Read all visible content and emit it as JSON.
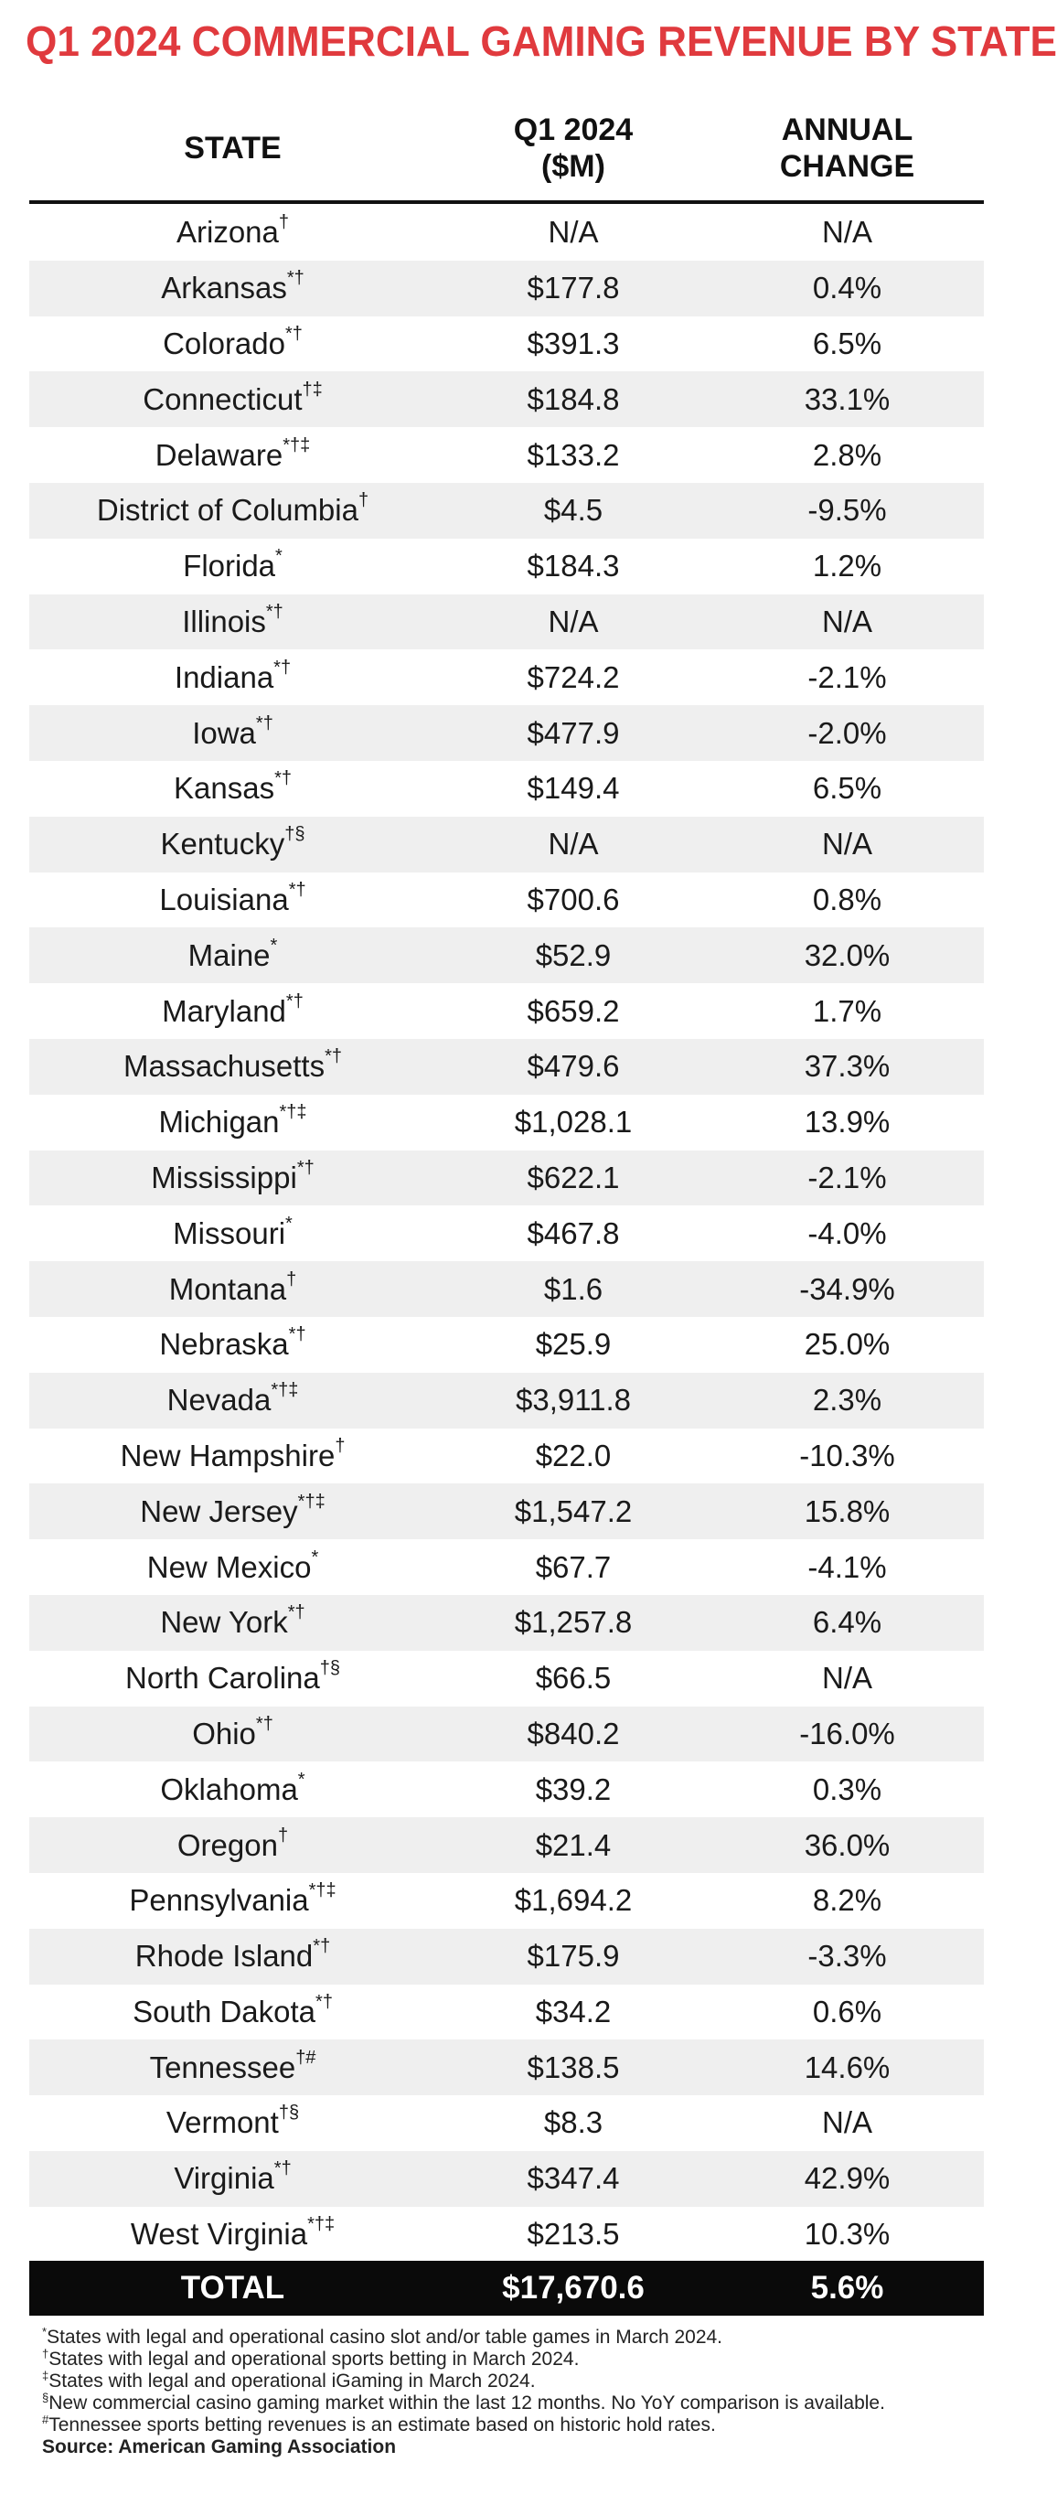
{
  "title": "Q1 2024 COMMERCIAL GAMING REVENUE BY STATE",
  "columns": {
    "state": "STATE",
    "revenue_line1": "Q1 2024",
    "revenue_line2": "($M)",
    "change": "ANNUAL CHANGE"
  },
  "rows": [
    {
      "state": "Arizona",
      "marks": "†",
      "revenue": "N/A",
      "change": "N/A"
    },
    {
      "state": "Arkansas",
      "marks": "*†",
      "revenue": "$177.8",
      "change": "0.4%"
    },
    {
      "state": "Colorado",
      "marks": "*†",
      "revenue": "$391.3",
      "change": "6.5%"
    },
    {
      "state": "Connecticut",
      "marks": "†‡",
      "revenue": "$184.8",
      "change": "33.1%"
    },
    {
      "state": "Delaware",
      "marks": "*†‡",
      "revenue": "$133.2",
      "change": "2.8%"
    },
    {
      "state": "District of Columbia",
      "marks": "†",
      "revenue": "$4.5",
      "change": "-9.5%"
    },
    {
      "state": "Florida",
      "marks": "*",
      "revenue": "$184.3",
      "change": "1.2%"
    },
    {
      "state": "Illinois",
      "marks": "*†",
      "revenue": "N/A",
      "change": "N/A"
    },
    {
      "state": "Indiana",
      "marks": "*†",
      "revenue": "$724.2",
      "change": "-2.1%"
    },
    {
      "state": "Iowa",
      "marks": "*†",
      "revenue": "$477.9",
      "change": "-2.0%"
    },
    {
      "state": "Kansas",
      "marks": "*†",
      "revenue": "$149.4",
      "change": "6.5%"
    },
    {
      "state": "Kentucky",
      "marks": "†§",
      "revenue": "N/A",
      "change": "N/A"
    },
    {
      "state": "Louisiana",
      "marks": "*†",
      "revenue": "$700.6",
      "change": "0.8%"
    },
    {
      "state": "Maine",
      "marks": "*",
      "revenue": "$52.9",
      "change": "32.0%"
    },
    {
      "state": "Maryland",
      "marks": "*†",
      "revenue": "$659.2",
      "change": "1.7%"
    },
    {
      "state": "Massachusetts",
      "marks": "*†",
      "revenue": "$479.6",
      "change": "37.3%"
    },
    {
      "state": "Michigan",
      "marks": "*†‡",
      "revenue": "$1,028.1",
      "change": "13.9%"
    },
    {
      "state": "Mississippi",
      "marks": "*†",
      "revenue": "$622.1",
      "change": "-2.1%"
    },
    {
      "state": "Missouri",
      "marks": "*",
      "revenue": "$467.8",
      "change": "-4.0%"
    },
    {
      "state": "Montana",
      "marks": "†",
      "revenue": "$1.6",
      "change": "-34.9%"
    },
    {
      "state": "Nebraska",
      "marks": "*†",
      "revenue": "$25.9",
      "change": "25.0%"
    },
    {
      "state": "Nevada",
      "marks": "*†‡",
      "revenue": "$3,911.8",
      "change": "2.3%"
    },
    {
      "state": "New Hampshire",
      "marks": "†",
      "revenue": "$22.0",
      "change": "-10.3%"
    },
    {
      "state": "New Jersey",
      "marks": "*†‡",
      "revenue": "$1,547.2",
      "change": "15.8%"
    },
    {
      "state": "New Mexico",
      "marks": "*",
      "revenue": "$67.7",
      "change": "-4.1%"
    },
    {
      "state": "New York",
      "marks": "*†",
      "revenue": "$1,257.8",
      "change": "6.4%"
    },
    {
      "state": "North Carolina",
      "marks": "†§",
      "revenue": "$66.5",
      "change": "N/A"
    },
    {
      "state": "Ohio",
      "marks": "*†",
      "revenue": "$840.2",
      "change": "-16.0%"
    },
    {
      "state": "Oklahoma",
      "marks": "*",
      "revenue": "$39.2",
      "change": "0.3%"
    },
    {
      "state": "Oregon",
      "marks": "†",
      "revenue": "$21.4",
      "change": "36.0%"
    },
    {
      "state": "Pennsylvania",
      "marks": "*†‡",
      "revenue": "$1,694.2",
      "change": "8.2%"
    },
    {
      "state": "Rhode Island",
      "marks": "*†",
      "revenue": "$175.9",
      "change": "-3.3%"
    },
    {
      "state": "South Dakota",
      "marks": "*†",
      "revenue": "$34.2",
      "change": "0.6%"
    },
    {
      "state": "Tennessee",
      "marks": "†#",
      "revenue": "$138.5",
      "change": "14.6%"
    },
    {
      "state": "Vermont",
      "marks": "†§",
      "revenue": "$8.3",
      "change": "N/A"
    },
    {
      "state": "Virginia",
      "marks": "*†",
      "revenue": "$347.4",
      "change": "42.9%"
    },
    {
      "state": "West Virginia",
      "marks": "*†‡",
      "revenue": "$213.5",
      "change": "10.3%"
    }
  ],
  "total": {
    "label": "TOTAL",
    "revenue": "$17,670.6",
    "change": "5.6%"
  },
  "footnotes": [
    {
      "mark": "*",
      "text": "States with legal and operational casino slot and/or table games in March 2024."
    },
    {
      "mark": "†",
      "text": "States with legal and operational sports betting in March 2024."
    },
    {
      "mark": "‡",
      "text": "States with legal and operational iGaming in March 2024."
    },
    {
      "mark": "§",
      "text": "New commercial casino gaming market within the last 12 months. No YoY comparison is available."
    },
    {
      "mark": "#",
      "text": "Tennessee sports betting revenues is an estimate based on historic hold rates."
    }
  ],
  "source": "Source: American Gaming Association",
  "colors": {
    "title": "#e03a3e",
    "stripe": "#efefef",
    "total_bg": "#0a0a0a"
  }
}
